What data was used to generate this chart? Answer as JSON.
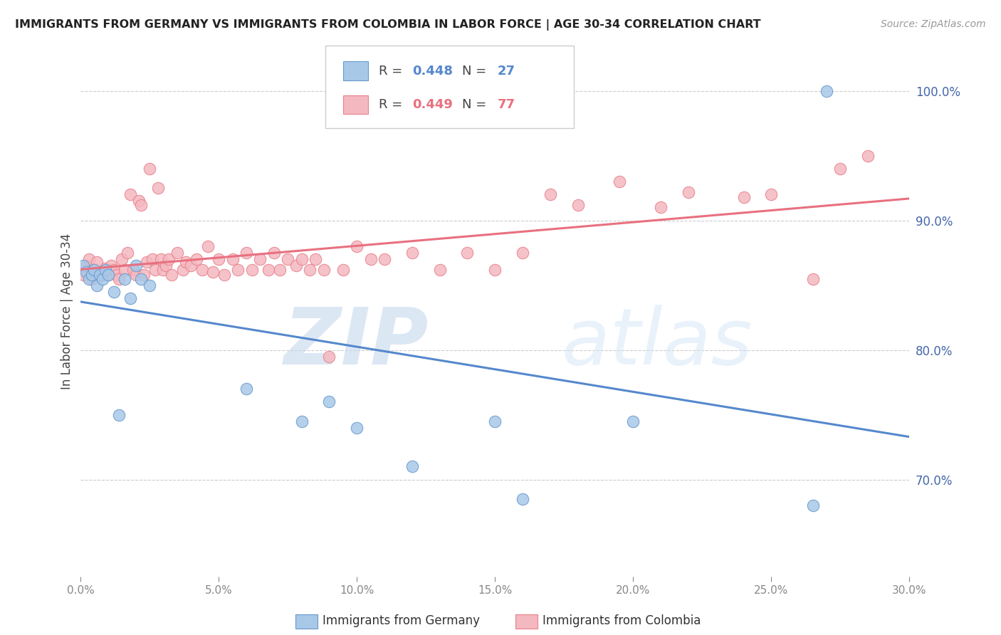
{
  "title": "IMMIGRANTS FROM GERMANY VS IMMIGRANTS FROM COLOMBIA IN LABOR FORCE | AGE 30-34 CORRELATION CHART",
  "source": "Source: ZipAtlas.com",
  "ylabel": "In Labor Force | Age 30-34",
  "xlim": [
    0.0,
    0.3
  ],
  "ylim": [
    0.625,
    1.035
  ],
  "yticks": [
    0.7,
    0.8,
    0.9,
    1.0
  ],
  "xticks": [
    0.0,
    0.05,
    0.1,
    0.15,
    0.2,
    0.25,
    0.3
  ],
  "germany_R": 0.448,
  "germany_N": 27,
  "colombia_R": 0.449,
  "colombia_N": 77,
  "germany_color": "#a8c8e8",
  "colombia_color": "#f4b8c0",
  "germany_edge_color": "#6699cc",
  "colombia_edge_color": "#e8808a",
  "germany_line_color": "#5588cc",
  "colombia_line_color": "#e87080",
  "legend_label_germany": "Immigrants from Germany",
  "legend_label_colombia": "Immigrants from Colombia",
  "watermark_zip": "ZIP",
  "watermark_atlas": "atlas",
  "background_color": "#ffffff",
  "tick_label_color": "#4466aa",
  "germany_x": [
    0.001,
    0.002,
    0.003,
    0.004,
    0.005,
    0.006,
    0.007,
    0.008,
    0.009,
    0.01,
    0.012,
    0.014,
    0.016,
    0.018,
    0.02,
    0.022,
    0.025,
    0.06,
    0.08,
    0.09,
    0.1,
    0.12,
    0.15,
    0.16,
    0.2,
    0.265,
    0.27
  ],
  "germany_y": [
    0.865,
    0.86,
    0.855,
    0.858,
    0.862,
    0.85,
    0.858,
    0.855,
    0.862,
    0.858,
    0.845,
    0.75,
    0.855,
    0.84,
    0.865,
    0.855,
    0.85,
    0.77,
    0.745,
    0.76,
    0.74,
    0.71,
    0.745,
    0.685,
    0.745,
    0.68,
    1.0
  ],
  "colombia_x": [
    0.001,
    0.002,
    0.003,
    0.004,
    0.005,
    0.006,
    0.007,
    0.008,
    0.009,
    0.01,
    0.011,
    0.012,
    0.013,
    0.014,
    0.015,
    0.016,
    0.017,
    0.018,
    0.019,
    0.02,
    0.021,
    0.022,
    0.023,
    0.024,
    0.025,
    0.026,
    0.027,
    0.028,
    0.029,
    0.03,
    0.031,
    0.032,
    0.033,
    0.035,
    0.037,
    0.038,
    0.04,
    0.042,
    0.044,
    0.046,
    0.048,
    0.05,
    0.052,
    0.055,
    0.057,
    0.06,
    0.062,
    0.065,
    0.068,
    0.07,
    0.072,
    0.075,
    0.078,
    0.08,
    0.083,
    0.085,
    0.088,
    0.09,
    0.095,
    0.1,
    0.105,
    0.11,
    0.12,
    0.13,
    0.14,
    0.15,
    0.16,
    0.17,
    0.18,
    0.195,
    0.21,
    0.22,
    0.24,
    0.25,
    0.265,
    0.275,
    0.285
  ],
  "colombia_y": [
    0.858,
    0.865,
    0.87,
    0.855,
    0.862,
    0.868,
    0.86,
    0.858,
    0.863,
    0.858,
    0.865,
    0.862,
    0.858,
    0.855,
    0.87,
    0.862,
    0.875,
    0.92,
    0.862,
    0.858,
    0.915,
    0.912,
    0.858,
    0.868,
    0.94,
    0.87,
    0.862,
    0.925,
    0.87,
    0.862,
    0.865,
    0.87,
    0.858,
    0.875,
    0.862,
    0.868,
    0.865,
    0.87,
    0.862,
    0.88,
    0.86,
    0.87,
    0.858,
    0.87,
    0.862,
    0.875,
    0.862,
    0.87,
    0.862,
    0.875,
    0.862,
    0.87,
    0.865,
    0.87,
    0.862,
    0.87,
    0.862,
    0.795,
    0.862,
    0.88,
    0.87,
    0.87,
    0.875,
    0.862,
    0.875,
    0.862,
    0.875,
    0.92,
    0.912,
    0.93,
    0.91,
    0.922,
    0.918,
    0.92,
    0.855,
    0.94,
    0.95
  ]
}
